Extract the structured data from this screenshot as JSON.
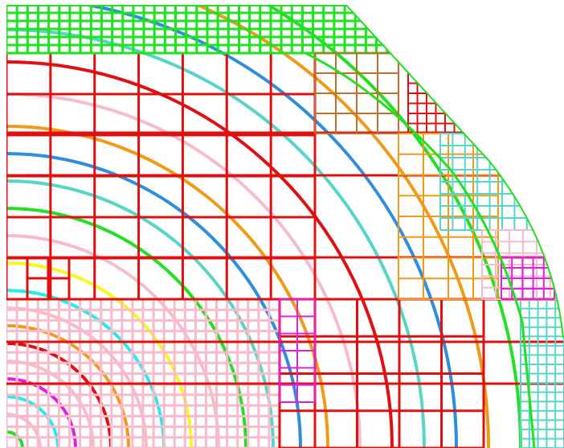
{
  "colors": {
    "background": "#ffffff",
    "red": "#e01010",
    "green": "#22e022",
    "blue": "#2d8ee0",
    "orange": "#f09a18",
    "magenta": "#e020e0",
    "pink": "#f7bccb",
    "teal": "#55d6c6",
    "cyan": "#22ecf0",
    "yellow": "#f8f820",
    "brown": "#c0702a"
  },
  "ring_colors": [
    "green",
    "pink",
    "cyan",
    "magenta",
    "pink",
    "red",
    "orange",
    "pink",
    "cyan",
    "yellow",
    "pink",
    "green",
    "teal",
    "blue",
    "orange",
    "pink",
    "red",
    "teal",
    "blue",
    "orange",
    "green"
  ],
  "regions": [
    {
      "name": "outer-top-band",
      "color": "green",
      "fine": true
    },
    {
      "name": "coarse-core-grid",
      "color": "red",
      "fine": false
    },
    {
      "name": "inner-fine-grid",
      "color": "pink",
      "fine": true
    },
    {
      "name": "brown-block",
      "color": "brown",
      "fine": false
    },
    {
      "name": "orange-block",
      "color": "orange",
      "fine": false
    },
    {
      "name": "teal-block",
      "color": "teal",
      "fine": true
    },
    {
      "name": "magenta-block",
      "color": "magenta",
      "fine": true
    }
  ]
}
